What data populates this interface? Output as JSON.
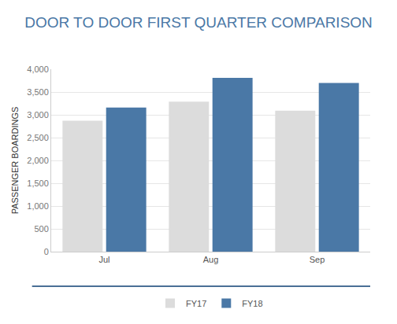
{
  "chart_data": {
    "type": "bar",
    "title": "DOOR TO DOOR FIRST QUARTER COMPARISON",
    "y_label": "PASSENGER BOARDINGS",
    "categories": [
      "Jul",
      "Aug",
      "Sep"
    ],
    "series": [
      {
        "name": "FY17",
        "color": "#dcdcdc",
        "values": [
          2870,
          3290,
          3090
        ]
      },
      {
        "name": "FY18",
        "color": "#4a78a6",
        "values": [
          3160,
          3810,
          3700
        ]
      }
    ],
    "ylim": [
      0,
      4000
    ],
    "yticks": [
      0,
      500,
      {
        "value": 1000,
        "label": "1,000"
      },
      {
        "value": 1500,
        "label": "1,500"
      },
      {
        "value": 2000,
        "label": "2,000"
      },
      {
        "value": 2500,
        "label": "2,500"
      },
      {
        "value": 3000,
        "label": "3,000"
      },
      {
        "value": 3500,
        "label": "3,500"
      },
      {
        "value": 4000,
        "label": "4,000"
      }
    ],
    "grid": true,
    "legend": "bottom"
  }
}
